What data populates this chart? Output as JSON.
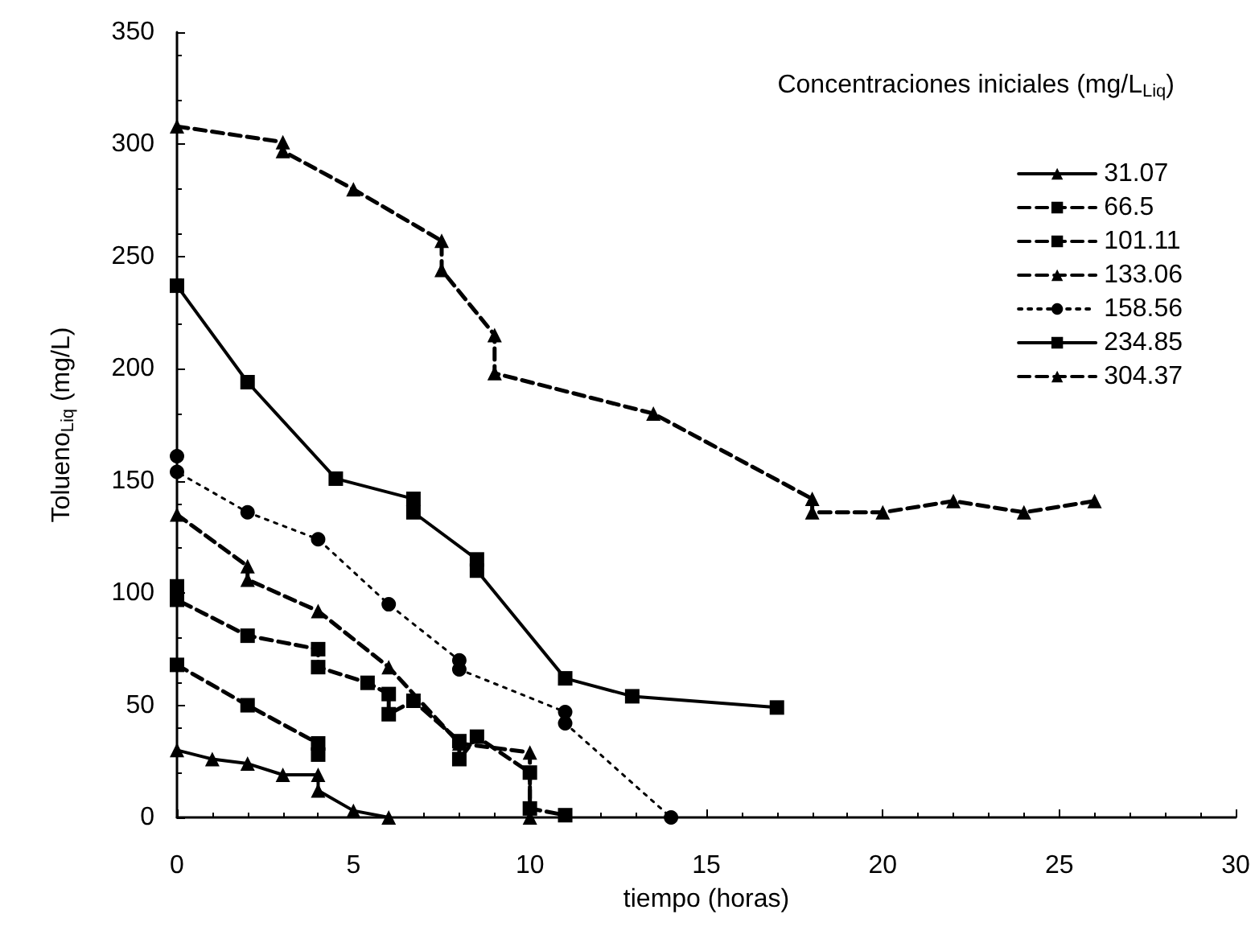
{
  "chart_data": {
    "type": "line",
    "xlabel": "tiempo (horas)",
    "ylabel": "Tolueno$_{Liq}$ (mg/L)",
    "legend_title": "Concentraciones iniciales (mg/L$_{Liq}$)",
    "xlim": [
      0,
      30
    ],
    "xticks": [
      0,
      5,
      10,
      15,
      20,
      25,
      30
    ],
    "ylim": [
      0,
      350
    ],
    "yticks": [
      0,
      50,
      100,
      150,
      200,
      250,
      300,
      350
    ],
    "grid": false,
    "legend": "top right",
    "series": [
      {
        "name": "31.07",
        "color": "#000000",
        "marker": "triangle",
        "line_style": "solid",
        "x": [
          0,
          1,
          2,
          3,
          4,
          4,
          5,
          6
        ],
        "values": [
          30,
          26,
          24,
          19,
          19,
          12,
          3,
          0
        ]
      },
      {
        "name": "66.5",
        "color": "#000000",
        "marker": "square",
        "line_style": "dashed",
        "x": [
          0,
          2,
          4,
          4
        ],
        "values": [
          68,
          50,
          33,
          28
        ]
      },
      {
        "name": "101.11",
        "color": "#000000",
        "marker": "square",
        "line_style": "dashed",
        "x": [
          0,
          0,
          2,
          4,
          4,
          5.4,
          6,
          6,
          6.7,
          8,
          8,
          8.5,
          10,
          10,
          11
        ],
        "values": [
          103,
          97,
          81,
          75,
          67,
          60,
          55,
          46,
          52,
          34,
          26,
          36,
          20,
          4,
          1
        ]
      },
      {
        "name": "133.06",
        "color": "#000000",
        "marker": "triangle",
        "line_style": "dashed",
        "x": [
          0,
          2,
          2,
          4,
          6,
          8,
          10,
          10
        ],
        "values": [
          135,
          112,
          106,
          92,
          67,
          33,
          29,
          0
        ]
      },
      {
        "name": "158.56",
        "color": "#000000",
        "marker": "circle",
        "line_style": "dotted",
        "x": [
          0,
          0,
          2,
          4,
          6,
          8,
          8,
          11,
          11,
          14
        ],
        "values": [
          161,
          154,
          136,
          124,
          95,
          70,
          66,
          47,
          42,
          0
        ]
      },
      {
        "name": "234.85",
        "color": "#000000",
        "marker": "square",
        "line_style": "solid",
        "x": [
          0,
          2,
          4.5,
          6.7,
          6.7,
          8.5,
          8.5,
          11,
          12.9,
          17
        ],
        "values": [
          237,
          194,
          151,
          142,
          136,
          115,
          110,
          62,
          54,
          49
        ]
      },
      {
        "name": "304.37",
        "color": "#000000",
        "marker": "triangle",
        "line_style": "dashed",
        "x": [
          0,
          3,
          3,
          5,
          7.5,
          7.5,
          9,
          9,
          13.5,
          18,
          18,
          20,
          22,
          24,
          26
        ],
        "values": [
          308,
          301,
          297,
          280,
          257,
          244,
          215,
          198,
          180,
          142,
          136,
          136,
          141,
          136,
          141
        ]
      }
    ]
  }
}
